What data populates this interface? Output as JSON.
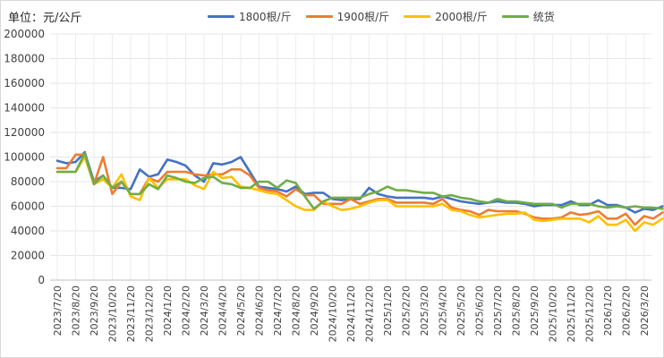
{
  "unit_label": "单位：元/公斤",
  "chart_data": {
    "type": "line",
    "title": "",
    "xlabel": "",
    "ylabel": "",
    "ylim": [
      0,
      200000
    ],
    "yticks": [
      0,
      20000,
      40000,
      60000,
      80000,
      100000,
      120000,
      140000,
      160000,
      180000,
      200000
    ],
    "grid": true,
    "legend_position": "top-center",
    "x_tick_labels": [
      "2023/7/20",
      "2023/8/20",
      "2023/9/20",
      "2023/10/20",
      "2023/11/20",
      "2023/12/20",
      "2024/1/20",
      "2024/2/20",
      "2024/3/20",
      "2024/4/20",
      "2024/5/20",
      "2024/6/20",
      "2024/7/20",
      "2024/8/20",
      "2024/9/20",
      "2024/10/20",
      "2024/11/20",
      "2024/12/20",
      "2025/1/20",
      "2025/2/20",
      "2025/3/20",
      "2025/4/20",
      "2025/5/20",
      "2025/6/20",
      "2025/7/20",
      "2025/8/20",
      "2025/9/20",
      "2025/10/20",
      "2025/11/20",
      "2025/12/20",
      "2026/1/20",
      "2026/2/20",
      "2026/3/20"
    ],
    "series": [
      {
        "name": "1800根/斤",
        "color": "#4472c4",
        "values": [
          [
            0,
            97000
          ],
          [
            0.5,
            95000
          ],
          [
            1,
            96000
          ],
          [
            1.5,
            104000
          ],
          [
            2,
            80000
          ],
          [
            2.5,
            85000
          ],
          [
            3,
            75000
          ],
          [
            3.5,
            75000
          ],
          [
            4,
            74000
          ],
          [
            4.5,
            90000
          ],
          [
            5,
            84000
          ],
          [
            5.5,
            86000
          ],
          [
            6,
            98000
          ],
          [
            6.5,
            96000
          ],
          [
            7,
            93000
          ],
          [
            7.5,
            85000
          ],
          [
            8,
            80000
          ],
          [
            8.5,
            95000
          ],
          [
            9,
            94000
          ],
          [
            9.5,
            96000
          ],
          [
            10,
            100000
          ],
          [
            10.5,
            88000
          ],
          [
            11,
            76000
          ],
          [
            11.5,
            75000
          ],
          [
            12,
            74000
          ],
          [
            12.5,
            72000
          ],
          [
            13,
            76000
          ],
          [
            13.5,
            70000
          ],
          [
            14,
            71000
          ],
          [
            14.5,
            71000
          ],
          [
            15,
            66000
          ],
          [
            15.5,
            65000
          ],
          [
            16,
            66000
          ],
          [
            16.5,
            66000
          ],
          [
            17,
            75000
          ],
          [
            17.5,
            70000
          ],
          [
            18,
            68000
          ],
          [
            18.5,
            67000
          ],
          [
            19,
            67000
          ],
          [
            19.5,
            67000
          ],
          [
            20,
            67000
          ],
          [
            20.5,
            66000
          ],
          [
            21,
            68000
          ],
          [
            21.5,
            66000
          ],
          [
            22,
            64000
          ],
          [
            22.5,
            63000
          ],
          [
            23,
            62000
          ],
          [
            23.5,
            63000
          ],
          [
            24,
            64000
          ],
          [
            24.5,
            63000
          ],
          [
            25,
            63000
          ],
          [
            25.5,
            62000
          ],
          [
            26,
            60000
          ],
          [
            26.5,
            61000
          ],
          [
            27,
            61000
          ],
          [
            27.5,
            61000
          ],
          [
            28,
            64000
          ],
          [
            28.5,
            61000
          ],
          [
            29,
            61000
          ],
          [
            29.5,
            65000
          ],
          [
            30,
            61000
          ],
          [
            30.5,
            61000
          ],
          [
            31,
            59000
          ],
          [
            31.5,
            55000
          ],
          [
            32,
            58000
          ],
          [
            32.5,
            57000
          ],
          [
            33,
            60000
          ]
        ]
      },
      {
        "name": "1900根/斤",
        "color": "#ed7d31",
        "values": [
          [
            0,
            91000
          ],
          [
            0.5,
            91000
          ],
          [
            1,
            102000
          ],
          [
            1.5,
            102000
          ],
          [
            2,
            78000
          ],
          [
            2.5,
            100000
          ],
          [
            3,
            70000
          ],
          [
            3.5,
            80000
          ],
          [
            4,
            70000
          ],
          [
            4.5,
            70000
          ],
          [
            5,
            83000
          ],
          [
            5.5,
            80000
          ],
          [
            6,
            88000
          ],
          [
            6.5,
            88000
          ],
          [
            7,
            88000
          ],
          [
            7.5,
            86000
          ],
          [
            8,
            85000
          ],
          [
            8.5,
            86000
          ],
          [
            9,
            86000
          ],
          [
            9.5,
            90000
          ],
          [
            10,
            90000
          ],
          [
            10.5,
            85000
          ],
          [
            11,
            75000
          ],
          [
            11.5,
            73000
          ],
          [
            12,
            72000
          ],
          [
            12.5,
            68000
          ],
          [
            13,
            74000
          ],
          [
            13.5,
            69000
          ],
          [
            14,
            69000
          ],
          [
            14.5,
            62000
          ],
          [
            15,
            62000
          ],
          [
            15.5,
            62000
          ],
          [
            16,
            66000
          ],
          [
            16.5,
            62000
          ],
          [
            17,
            64000
          ],
          [
            17.5,
            66000
          ],
          [
            18,
            66000
          ],
          [
            18.5,
            63000
          ],
          [
            19,
            63000
          ],
          [
            19.5,
            63000
          ],
          [
            20,
            63000
          ],
          [
            20.5,
            62000
          ],
          [
            21,
            66000
          ],
          [
            21.5,
            59000
          ],
          [
            22,
            57000
          ],
          [
            22.5,
            56000
          ],
          [
            23,
            53000
          ],
          [
            23.5,
            57000
          ],
          [
            24,
            56000
          ],
          [
            24.5,
            56000
          ],
          [
            25,
            56000
          ],
          [
            25.5,
            54000
          ],
          [
            26,
            51000
          ],
          [
            26.5,
            50000
          ],
          [
            27,
            50000
          ],
          [
            27.5,
            51000
          ],
          [
            28,
            55000
          ],
          [
            28.5,
            53000
          ],
          [
            29,
            54000
          ],
          [
            29.5,
            56000
          ],
          [
            30,
            50000
          ],
          [
            30.5,
            50000
          ],
          [
            31,
            54000
          ],
          [
            31.5,
            45000
          ],
          [
            32,
            52000
          ],
          [
            32.5,
            50000
          ],
          [
            33,
            55000
          ]
        ]
      },
      {
        "name": "2000根/斤",
        "color": "#ffc000",
        "values": [
          [
            0,
            88000
          ],
          [
            0.5,
            88000
          ],
          [
            1,
            88000
          ],
          [
            1.5,
            100000
          ],
          [
            2,
            78000
          ],
          [
            2.5,
            82000
          ],
          [
            3,
            75000
          ],
          [
            3.5,
            86000
          ],
          [
            4,
            68000
          ],
          [
            4.5,
            65000
          ],
          [
            5,
            83000
          ],
          [
            5.5,
            75000
          ],
          [
            6,
            82000
          ],
          [
            6.5,
            82000
          ],
          [
            7,
            82000
          ],
          [
            7.5,
            77000
          ],
          [
            8,
            74000
          ],
          [
            8.5,
            88000
          ],
          [
            9,
            83000
          ],
          [
            9.5,
            84000
          ],
          [
            10,
            76000
          ],
          [
            10.5,
            75000
          ],
          [
            11,
            73000
          ],
          [
            11.5,
            71000
          ],
          [
            12,
            70000
          ],
          [
            12.5,
            65000
          ],
          [
            13,
            60000
          ],
          [
            13.5,
            57000
          ],
          [
            14,
            57000
          ],
          [
            14.5,
            64000
          ],
          [
            15,
            60000
          ],
          [
            15.5,
            57000
          ],
          [
            16,
            58000
          ],
          [
            16.5,
            60000
          ],
          [
            17,
            63000
          ],
          [
            17.5,
            65000
          ],
          [
            18,
            65000
          ],
          [
            18.5,
            60000
          ],
          [
            19,
            60000
          ],
          [
            19.5,
            60000
          ],
          [
            20,
            60000
          ],
          [
            20.5,
            60000
          ],
          [
            21,
            62000
          ],
          [
            21.5,
            57000
          ],
          [
            22,
            56000
          ],
          [
            22.5,
            53000
          ],
          [
            23,
            51000
          ],
          [
            23.5,
            52000
          ],
          [
            24,
            53000
          ],
          [
            24.5,
            54000
          ],
          [
            25,
            54000
          ],
          [
            25.5,
            55000
          ],
          [
            26,
            49000
          ],
          [
            26.5,
            48000
          ],
          [
            27,
            49000
          ],
          [
            27.5,
            50000
          ],
          [
            28,
            50000
          ],
          [
            28.5,
            50000
          ],
          [
            29,
            47000
          ],
          [
            29.5,
            52000
          ],
          [
            30,
            45000
          ],
          [
            30.5,
            45000
          ],
          [
            31,
            49000
          ],
          [
            31.5,
            40000
          ],
          [
            32,
            47000
          ],
          [
            32.5,
            45000
          ],
          [
            33,
            50000
          ]
        ]
      },
      {
        "name": "统货",
        "color": "#70ad47",
        "values": [
          [
            0,
            88000
          ],
          [
            0.5,
            88000
          ],
          [
            1,
            88000
          ],
          [
            1.5,
            103000
          ],
          [
            2,
            78000
          ],
          [
            2.5,
            85000
          ],
          [
            3,
            75000
          ],
          [
            3.5,
            80000
          ],
          [
            4,
            70000
          ],
          [
            4.5,
            70000
          ],
          [
            5,
            78000
          ],
          [
            5.5,
            74000
          ],
          [
            6,
            85000
          ],
          [
            6.5,
            83000
          ],
          [
            7,
            80000
          ],
          [
            7.5,
            79000
          ],
          [
            8,
            83000
          ],
          [
            8.5,
            84000
          ],
          [
            9,
            79000
          ],
          [
            9.5,
            78000
          ],
          [
            10,
            75000
          ],
          [
            10.5,
            75000
          ],
          [
            11,
            80000
          ],
          [
            11.5,
            80000
          ],
          [
            12,
            75000
          ],
          [
            12.5,
            81000
          ],
          [
            13,
            79000
          ],
          [
            13.5,
            68000
          ],
          [
            14,
            58000
          ],
          [
            14.5,
            64000
          ],
          [
            15,
            67000
          ],
          [
            15.5,
            67000
          ],
          [
            16,
            67000
          ],
          [
            16.5,
            67000
          ],
          [
            17,
            70000
          ],
          [
            17.5,
            72000
          ],
          [
            18,
            76000
          ],
          [
            18.5,
            73000
          ],
          [
            19,
            73000
          ],
          [
            19.5,
            72000
          ],
          [
            20,
            71000
          ],
          [
            20.5,
            71000
          ],
          [
            21,
            68000
          ],
          [
            21.5,
            69000
          ],
          [
            22,
            67000
          ],
          [
            22.5,
            66000
          ],
          [
            23,
            64000
          ],
          [
            23.5,
            63000
          ],
          [
            24,
            66000
          ],
          [
            24.5,
            64000
          ],
          [
            25,
            64000
          ],
          [
            25.5,
            63000
          ],
          [
            26,
            62000
          ],
          [
            26.5,
            62000
          ],
          [
            27,
            62000
          ],
          [
            27.5,
            59000
          ],
          [
            28,
            62000
          ],
          [
            28.5,
            62000
          ],
          [
            29,
            62000
          ],
          [
            29.5,
            60000
          ],
          [
            30,
            59000
          ],
          [
            30.5,
            60000
          ],
          [
            31,
            59000
          ],
          [
            31.5,
            60000
          ],
          [
            32,
            59000
          ],
          [
            32.5,
            59000
          ],
          [
            33,
            58000
          ]
        ]
      }
    ]
  }
}
